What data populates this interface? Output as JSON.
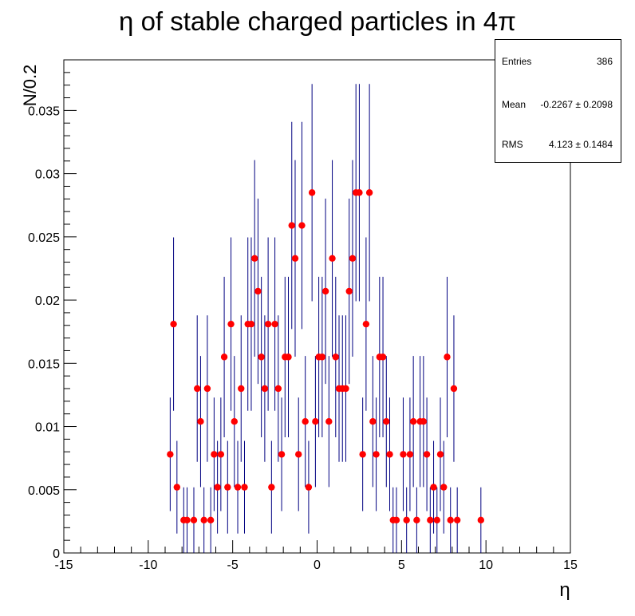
{
  "chart_data": {
    "type": "scatter",
    "title": "η of stable charged particles in 4π",
    "xlabel": "η",
    "ylabel": "N/0.2",
    "xlim": [
      -15,
      15
    ],
    "ylim": [
      0,
      0.039
    ],
    "x_ticks": [
      -15,
      -10,
      -5,
      0,
      5,
      10,
      15
    ],
    "y_ticks": [
      0,
      0.005,
      0.01,
      0.015,
      0.02,
      0.025,
      0.03,
      0.035
    ],
    "x_tick_labels": [
      "-15",
      "-10",
      "-5",
      "0",
      "5",
      "10",
      "15"
    ],
    "y_tick_labels": [
      "0",
      "0.005",
      "0.01",
      "0.015",
      "0.02",
      "0.025",
      "0.03",
      "0.035"
    ],
    "marker_color": "#ff0000",
    "errorbar_color": "#000080",
    "points": [
      [
        -8.7,
        0.0078
      ],
      [
        -8.5,
        0.0181
      ],
      [
        -8.3,
        0.0052
      ],
      [
        -7.9,
        0.0026
      ],
      [
        -7.7,
        0.0026
      ],
      [
        -7.3,
        0.0026
      ],
      [
        -7.1,
        0.013
      ],
      [
        -6.9,
        0.0104
      ],
      [
        -6.7,
        0.0026
      ],
      [
        -6.5,
        0.013
      ],
      [
        -6.3,
        0.0026
      ],
      [
        -6.1,
        0.0078
      ],
      [
        -5.9,
        0.0052
      ],
      [
        -5.7,
        0.0078
      ],
      [
        -5.5,
        0.0155
      ],
      [
        -5.3,
        0.0052
      ],
      [
        -5.1,
        0.0181
      ],
      [
        -4.9,
        0.0104
      ],
      [
        -4.7,
        0.0052
      ],
      [
        -4.5,
        0.013
      ],
      [
        -4.3,
        0.0052
      ],
      [
        -4.1,
        0.0181
      ],
      [
        -3.9,
        0.0181
      ],
      [
        -3.7,
        0.0233
      ],
      [
        -3.5,
        0.0207
      ],
      [
        -3.3,
        0.0155
      ],
      [
        -3.1,
        0.013
      ],
      [
        -2.9,
        0.0181
      ],
      [
        -2.7,
        0.0052
      ],
      [
        -2.5,
        0.0181
      ],
      [
        -2.3,
        0.013
      ],
      [
        -2.1,
        0.0078
      ],
      [
        -1.9,
        0.0155
      ],
      [
        -1.7,
        0.0155
      ],
      [
        -1.5,
        0.0259
      ],
      [
        -1.3,
        0.0233
      ],
      [
        -1.1,
        0.0078
      ],
      [
        -0.9,
        0.0259
      ],
      [
        -0.7,
        0.0104
      ],
      [
        -0.5,
        0.0052
      ],
      [
        -0.3,
        0.0285
      ],
      [
        -0.1,
        0.0104
      ],
      [
        0.1,
        0.0155
      ],
      [
        0.3,
        0.0155
      ],
      [
        0.5,
        0.0207
      ],
      [
        0.7,
        0.0104
      ],
      [
        0.9,
        0.0233
      ],
      [
        1.1,
        0.0155
      ],
      [
        1.3,
        0.013
      ],
      [
        1.5,
        0.013
      ],
      [
        1.7,
        0.013
      ],
      [
        1.9,
        0.0207
      ],
      [
        2.1,
        0.0233
      ],
      [
        2.3,
        0.0285
      ],
      [
        2.5,
        0.0285
      ],
      [
        2.7,
        0.0078
      ],
      [
        2.9,
        0.0181
      ],
      [
        3.1,
        0.0285
      ],
      [
        3.3,
        0.0104
      ],
      [
        3.5,
        0.0078
      ],
      [
        3.7,
        0.0155
      ],
      [
        3.9,
        0.0155
      ],
      [
        4.1,
        0.0104
      ],
      [
        4.3,
        0.0078
      ],
      [
        4.5,
        0.0026
      ],
      [
        4.7,
        0.0026
      ],
      [
        5.1,
        0.0078
      ],
      [
        5.3,
        0.0026
      ],
      [
        5.5,
        0.0078
      ],
      [
        5.7,
        0.0104
      ],
      [
        5.9,
        0.0026
      ],
      [
        6.1,
        0.0104
      ],
      [
        6.3,
        0.0104
      ],
      [
        6.5,
        0.0078
      ],
      [
        6.7,
        0.0026
      ],
      [
        6.9,
        0.0052
      ],
      [
        7.1,
        0.0026
      ],
      [
        7.3,
        0.0078
      ],
      [
        7.5,
        0.0052
      ],
      [
        7.7,
        0.0155
      ],
      [
        7.9,
        0.0026
      ],
      [
        8.1,
        0.013
      ],
      [
        8.3,
        0.0026
      ],
      [
        9.7,
        0.0026
      ]
    ],
    "grid": false,
    "legend": "none"
  },
  "stats": {
    "entries_label": "Entries",
    "entries_value": "386",
    "mean_label": "Mean",
    "mean_value": "-0.2267 ± 0.2098",
    "rms_label": "RMS",
    "rms_value": "4.123 ± 0.1484"
  }
}
